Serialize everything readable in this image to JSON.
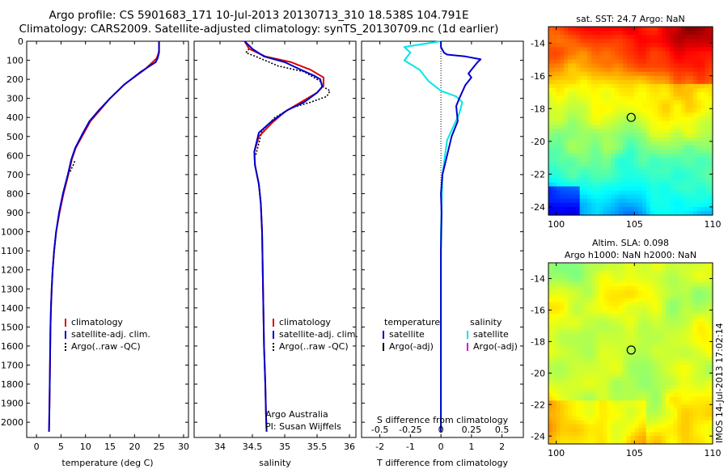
{
  "header": {
    "line1": "Argo profile: CS 5901683_171 10-Jul-2013 20130713_310 18.538S 104.791E",
    "line2": "Climatology: CARS2009. Satellite-adjusted climatology: synTS_20130709.nc (1d earlier)"
  },
  "depth_ticks": [
    0,
    100,
    200,
    300,
    400,
    500,
    600,
    700,
    800,
    900,
    1000,
    1100,
    1200,
    1300,
    1400,
    1500,
    1600,
    1700,
    1800,
    1900,
    2000
  ],
  "colors": {
    "climatology": "#e00000",
    "satellite": "#0000cc",
    "argo": "#000000",
    "sal_sat": "#00e6e6",
    "sal_argo": "#e000e0"
  },
  "chart_data": [
    {
      "type": "line",
      "id": "temperature",
      "xlabel": "temperature (deg C)",
      "ylabel": "",
      "xlim": [
        -2,
        31
      ],
      "ylim": [
        2080,
        0
      ],
      "xticks": [
        0,
        5,
        10,
        15,
        20,
        25,
        30
      ],
      "legend": [
        "climatology",
        "satellite-adj. clim.",
        "Argo(..raw -QC)"
      ],
      "series": [
        {
          "name": "climatology",
          "x": [
            25.0,
            25.0,
            24.8,
            24.5,
            22.0,
            18.0,
            15.0,
            13.0,
            11.0,
            9.5,
            8.0,
            7.2,
            6.5,
            5.5,
            4.7,
            4.0,
            3.6,
            3.3,
            3.1,
            2.95,
            2.85,
            2.75,
            2.65,
            2.55
          ],
          "y": [
            0,
            50,
            70,
            90,
            150,
            225,
            300,
            360,
            420,
            490,
            560,
            620,
            700,
            800,
            900,
            1000,
            1100,
            1200,
            1300,
            1400,
            1500,
            1700,
            1900,
            2050
          ]
        },
        {
          "name": "satellite-adj. clim.",
          "x": [
            25.0,
            25.0,
            24.7,
            24.3,
            21.3,
            17.8,
            15.0,
            12.8,
            10.8,
            9.3,
            7.9,
            7.1,
            6.4,
            5.4,
            4.6,
            4.0,
            3.6,
            3.3,
            3.1,
            2.95,
            2.85,
            2.75,
            2.65,
            2.55
          ],
          "y": [
            0,
            60,
            90,
            110,
            160,
            230,
            300,
            360,
            420,
            490,
            560,
            620,
            700,
            800,
            900,
            1000,
            1100,
            1200,
            1300,
            1400,
            1500,
            1700,
            1900,
            2050
          ]
        },
        {
          "name": "Argo(..raw -QC)",
          "x": [
            7.8,
            7.5,
            7.1,
            6.8
          ],
          "y": [
            630,
            650,
            670,
            690
          ]
        }
      ]
    },
    {
      "type": "line",
      "id": "salinity",
      "xlabel": "salinity",
      "ylabel": "",
      "xlim": [
        33.6,
        36.1
      ],
      "ylim": [
        2080,
        0
      ],
      "xticks": [
        34,
        34.5,
        35,
        35.5,
        36
      ],
      "legend": [
        "climatology",
        "satellite-adj. clim.",
        "Argo(..raw -QC)"
      ],
      "notes": [
        "Argo Australia",
        "PI: Susan Wijffels"
      ],
      "series": [
        {
          "name": "climatology",
          "x": [
            34.38,
            34.45,
            34.7,
            35.1,
            35.4,
            35.6,
            35.6,
            35.5,
            35.25,
            35.0,
            34.8,
            34.6,
            34.53,
            34.54,
            34.6,
            34.63,
            34.65,
            34.66,
            34.67,
            34.68,
            34.69,
            34.7,
            34.71,
            34.72
          ],
          "y": [
            0,
            40,
            80,
            110,
            150,
            190,
            230,
            270,
            320,
            370,
            430,
            500,
            580,
            650,
            750,
            850,
            1000,
            1200,
            1400,
            1600,
            1700,
            1800,
            1950,
            2050
          ]
        },
        {
          "name": "satellite-adj. clim.",
          "x": [
            34.38,
            34.5,
            34.68,
            35.0,
            35.25,
            35.45,
            35.55,
            35.58,
            35.5,
            35.3,
            35.05,
            34.8,
            34.6,
            34.53,
            34.54,
            34.6,
            34.63,
            34.65,
            34.66,
            34.67,
            34.68,
            34.69,
            34.7,
            34.71,
            34.72
          ],
          "y": [
            0,
            40,
            80,
            110,
            150,
            180,
            200,
            240,
            270,
            320,
            360,
            420,
            480,
            580,
            650,
            750,
            850,
            1000,
            1200,
            1400,
            1600,
            1700,
            1800,
            1950,
            2050
          ]
        },
        {
          "name": "Argo(..raw -QC)",
          "x": [
            34.45,
            34.4,
            34.55,
            34.9,
            35.3,
            35.55,
            35.6,
            35.7,
            35.65,
            35.4,
            35.1,
            34.85,
            34.65,
            34.55
          ],
          "y": [
            40,
            60,
            80,
            130,
            160,
            210,
            240,
            260,
            290,
            320,
            350,
            400,
            470,
            600
          ]
        }
      ]
    },
    {
      "type": "line",
      "id": "difference",
      "xlabel": "T difference from climatology",
      "top_label": "S difference from climatology",
      "xlim": [
        -2.6,
        2.7
      ],
      "ylim": [
        2080,
        0
      ],
      "xticks": [
        -2,
        -1,
        0,
        1,
        2
      ],
      "xticklabels_bottom": [
        "-2",
        "-1",
        "0",
        "1",
        "2"
      ],
      "xticklabels_top": [
        "-0.5",
        "-0.25",
        "0",
        "0.25",
        "0.5"
      ],
      "legend_temperature": [
        "temperature",
        "satellite",
        "Argo(-adj)"
      ],
      "legend_salinity": [
        "salinity",
        "satellite",
        "Argo(-adj)"
      ],
      "series": [
        {
          "name": "temperature satellite",
          "x": [
            0,
            0,
            0.1,
            0.2,
            0.8,
            1.3,
            1.2,
            1.0,
            0.9,
            1.0,
            0.8,
            0.6,
            0.5,
            0.55,
            0.35,
            0.2,
            0.05,
            0.0,
            0.02,
            0.0,
            0.0,
            0.0
          ],
          "y": [
            0,
            30,
            60,
            70,
            80,
            95,
            110,
            150,
            170,
            190,
            230,
            300,
            340,
            420,
            500,
            600,
            700,
            800,
            900,
            1100,
            1500,
            2050
          ]
        },
        {
          "name": "salinity satellite",
          "x": [
            0,
            -1.2,
            -1.0,
            -1.2,
            -0.7,
            -0.4,
            0.0,
            0.5,
            0.7,
            0.6,
            0.4,
            0.2,
            0.05,
            0.0,
            0.0
          ],
          "y": [
            0,
            30,
            60,
            100,
            150,
            210,
            260,
            290,
            320,
            380,
            450,
            520,
            700,
            1000,
            2050
          ]
        }
      ]
    },
    {
      "type": "heatmap",
      "id": "sst",
      "title": "sat. SST: 24.7 Argo: NaN",
      "xlim": [
        99.5,
        110
      ],
      "ylim": [
        -24.5,
        -13
      ],
      "xticks": [
        100,
        105,
        110
      ],
      "yticks": [
        -14,
        -16,
        -18,
        -20,
        -22,
        -24
      ],
      "marker": {
        "lon": 104.791,
        "lat": -18.538
      }
    },
    {
      "type": "heatmap",
      "id": "sla",
      "title_line1": "Altim. SLA: 0.098",
      "title_line2": "Argo h1000: NaN h2000: NaN",
      "xlim": [
        99.5,
        110
      ],
      "ylim": [
        -24.5,
        -13
      ],
      "xticks": [
        100,
        105,
        110
      ],
      "yticks": [
        -14,
        -16,
        -18,
        -20,
        -22,
        -24
      ],
      "marker": {
        "lon": 104.791,
        "lat": -18.538
      }
    }
  ],
  "stamp": "IMOS 14-Jul-2013 17:02:14"
}
